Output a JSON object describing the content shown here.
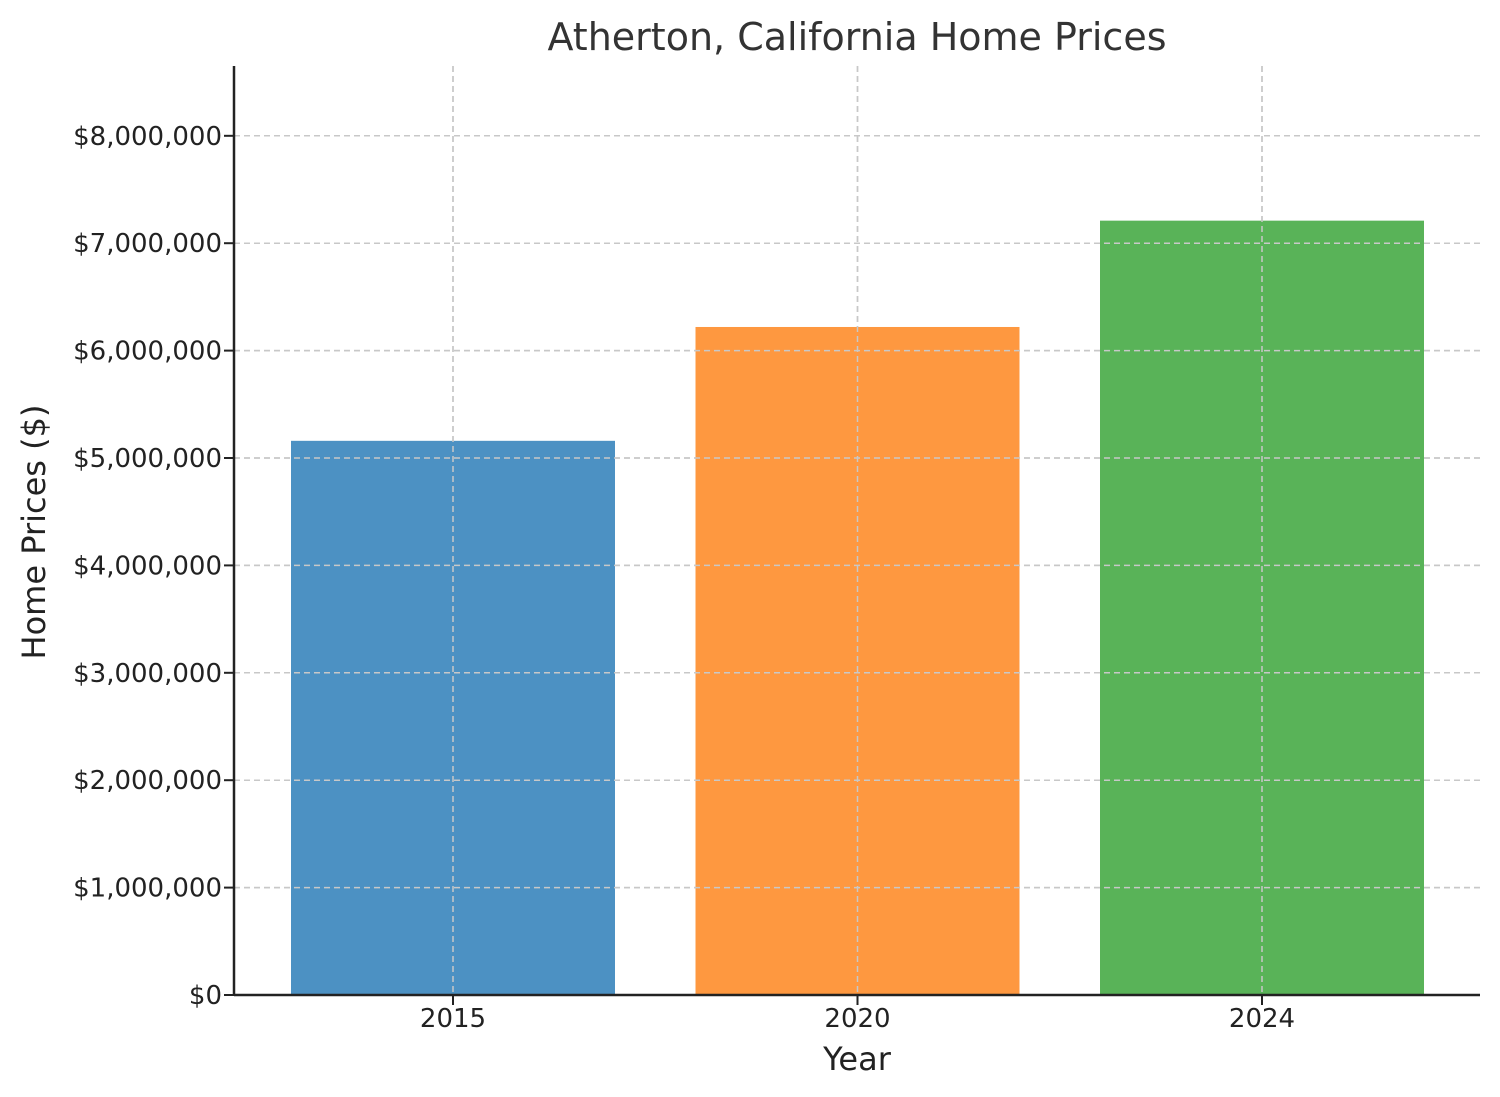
{
  "chart_data": {
    "type": "bar",
    "title": "Atherton, California Home Prices",
    "xlabel": "Year",
    "ylabel": "Home Prices ($)",
    "categories": [
      "2015",
      "2020",
      "2024"
    ],
    "values": [
      5160000,
      6220000,
      7210000
    ],
    "colors": [
      "#4c91c3",
      "#fe9840",
      "#59b358"
    ],
    "ylim": [
      0,
      8650000
    ],
    "yticks": [
      0,
      1000000,
      2000000,
      3000000,
      4000000,
      5000000,
      6000000,
      7000000,
      8000000
    ],
    "ytick_labels": [
      "$0",
      "$1,000,000",
      "$2,000,000",
      "$3,000,000",
      "$4,000,000",
      "$5,000,000",
      "$6,000,000",
      "$7,000,000",
      "$8,000,000"
    ],
    "grid": true,
    "legend": "none"
  }
}
